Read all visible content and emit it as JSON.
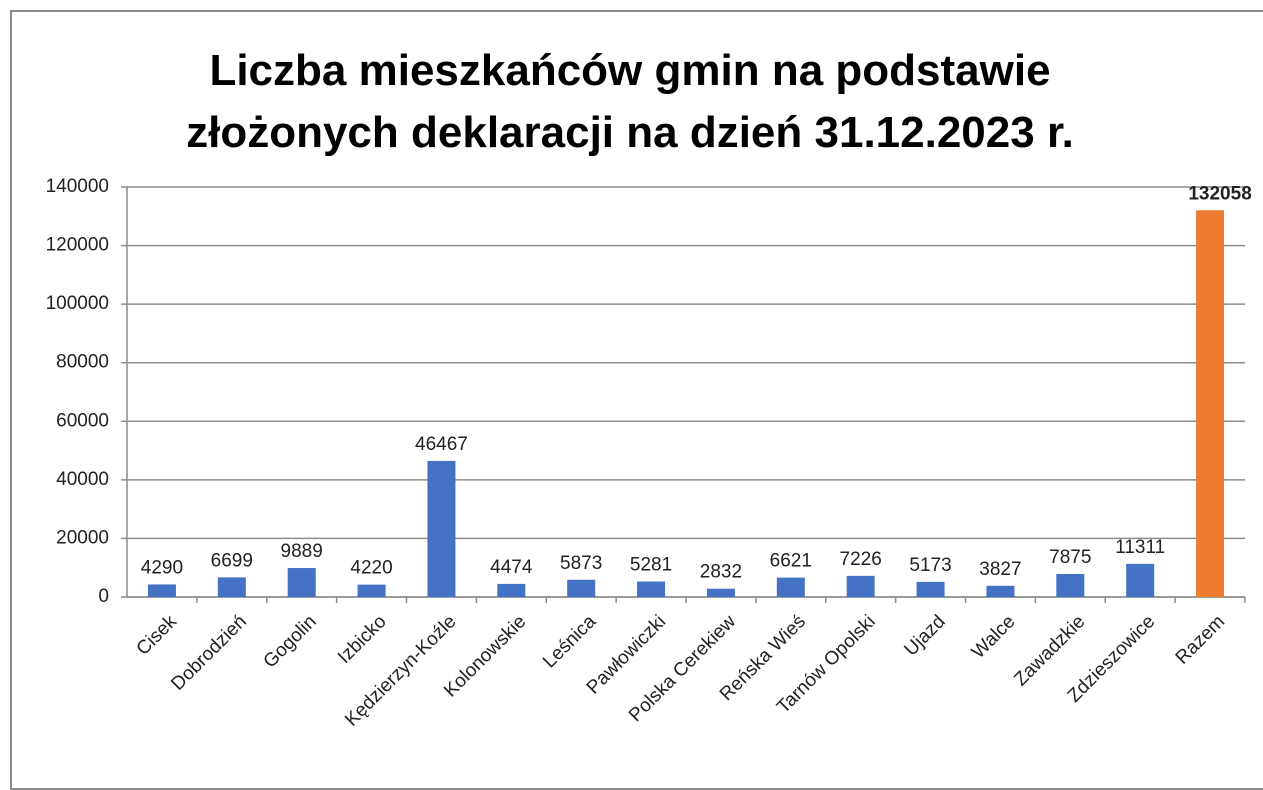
{
  "chart_data": {
    "type": "bar",
    "title": "Liczba mieszkańców gmin na podstawie złożonych deklaracji na dzień 31.12.2023 r.",
    "categories": [
      "Cisek",
      "Dobrodzień",
      "Gogolin",
      "Izbicko",
      "Kędzierzyn-Koźle",
      "Kolonowskie",
      "Leśnica",
      "Pawłowiczki",
      "Polska Cerekiew",
      "Reńska Wieś",
      "Tarnów Opolski",
      "Ujazd",
      "Walce",
      "Zawadzkie",
      "Zdzieszowice",
      "Razem"
    ],
    "values": [
      4290,
      6699,
      9889,
      4220,
      46467,
      4474,
      5873,
      5281,
      2832,
      6621,
      7226,
      5173,
      3827,
      7875,
      11311,
      132058
    ],
    "colors": [
      "#4472c4",
      "#4472c4",
      "#4472c4",
      "#4472c4",
      "#4472c4",
      "#4472c4",
      "#4472c4",
      "#4472c4",
      "#4472c4",
      "#4472c4",
      "#4472c4",
      "#4472c4",
      "#4472c4",
      "#4472c4",
      "#4472c4",
      "#ed7d31"
    ],
    "ylim": [
      0,
      140000
    ],
    "yticks": [
      0,
      20000,
      40000,
      60000,
      80000,
      100000,
      120000,
      140000
    ],
    "grid": true
  }
}
